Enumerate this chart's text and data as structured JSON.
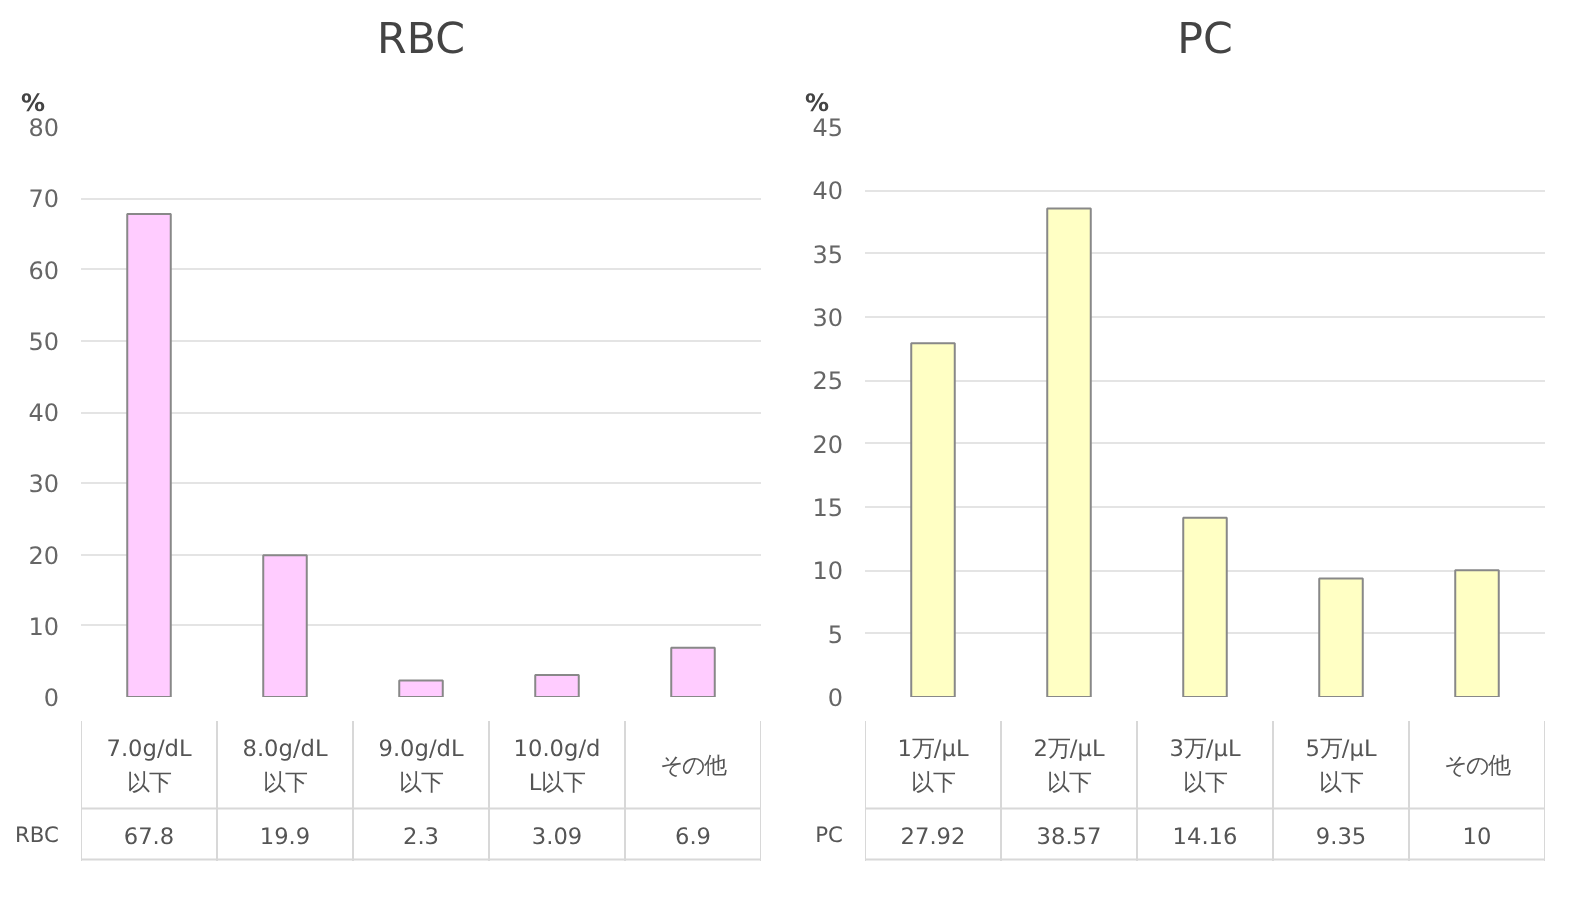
{
  "chart_data": [
    {
      "type": "bar",
      "title": "RBC",
      "ylabel": "%",
      "categories": [
        "7.0g/dL以下",
        "8.0g/dL以下",
        "9.0g/dL以下",
        "10.0g/dL以下",
        "その他"
      ],
      "series": [
        {
          "name": "RBC",
          "color": "#ffccff",
          "values": [
            67.8,
            19.9,
            2.3,
            3.09,
            6.9
          ]
        }
      ],
      "ylim": [
        0,
        80
      ],
      "yticks": [
        0,
        10,
        20,
        30,
        40,
        50,
        60,
        70,
        80
      ],
      "grid": "y",
      "data_labels": true
    },
    {
      "type": "bar",
      "title": "PC",
      "ylabel": "%",
      "categories": [
        "1万/μL以下",
        "2万/μL以下",
        "3万/μL以下",
        "5万/μL以下",
        "その他"
      ],
      "series": [
        {
          "name": "PC",
          "color": "#ffffc4",
          "values": [
            27.92,
            38.57,
            14.16,
            9.35,
            10
          ]
        }
      ],
      "ylim": [
        0,
        45
      ],
      "yticks": [
        0,
        5,
        10,
        15,
        20,
        25,
        30,
        35,
        40,
        45
      ],
      "grid": "y",
      "data_labels": true
    }
  ]
}
